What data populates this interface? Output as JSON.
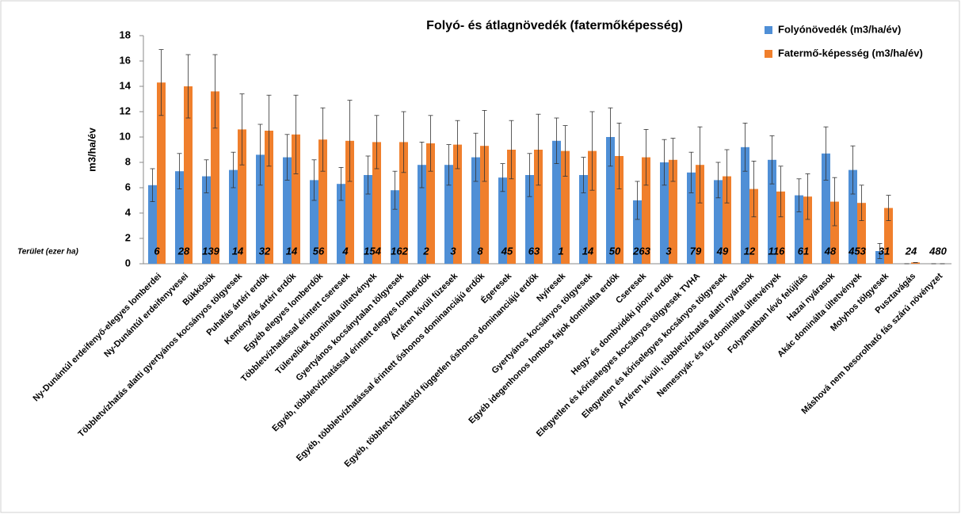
{
  "chart_data": {
    "type": "bar",
    "title": "Folyó- és átlagnövedék (fatermőképesség)",
    "y_label": "m3/ha/év",
    "area_title": "Terület (ezer ha)",
    "categories": [
      "Ny-Dunántúl erdeifenyő-elegyes lomberdei",
      "Ny-Dunántúl erdeifenyvesei",
      "Bükkösök",
      "Többletvízhatás alatti gyertyános kocsányos tölgyesek",
      "Puhafás ártéri erdők",
      "Keményfás ártéri erdők",
      "Egyéb elegyes lomberdők",
      "Többletvízhatással érintett cseresek",
      "Tülevelűek dominálta ültetvények",
      "Gyertyános kocsánytalan tölgyesek",
      "Egyéb, többletvízhatással érintett elegyes lomberdők",
      "Ártéren kívüli füzesek",
      "Egyéb, többletvízhatással érintett őshonos dominanciájú erdők",
      "Égeresek",
      "Egyéb, többletvízhatástól független őshonos dominanciájú erdők",
      "Nyíresek",
      "Gyertyános kocsányos tölgyesek",
      "Egyéb idegenhonos lombos fajok dominálta erdők",
      "Cseresek",
      "Hegy- és dombvidéki pionír erdők",
      "Elegyetlen és kőriselegyes kocsányos tölgyesek TVHA",
      "Elegyetlen és kőriselegyes kocsányos tölgyesek",
      "Ártéren kívüli, többletvízhatás alatti nyárasok",
      "Nemesnyár- és fűz dominálta ültetvények",
      "Folyamatban lévő felújítás",
      "Hazai nyárasok",
      "Akác dominálta ültetvények",
      "Molyhos tölgyesek",
      "Pusztavágás",
      "Máshová nem besorolható fás szárú növényzet"
    ],
    "area_values": [
      6,
      28,
      139,
      14,
      32,
      14,
      56,
      4,
      154,
      162,
      2,
      3,
      8,
      45,
      63,
      1,
      14,
      50,
      263,
      3,
      79,
      49,
      12,
      116,
      61,
      48,
      453,
      31,
      24,
      480
    ],
    "series": [
      {
        "name": "Folyónövedék (m3/ha/év)",
        "color": "#4f8fd6",
        "values": [
          6.2,
          7.3,
          6.9,
          7.4,
          8.6,
          8.4,
          6.6,
          6.3,
          7.0,
          5.8,
          7.8,
          7.8,
          8.4,
          6.8,
          7.0,
          9.7,
          7.0,
          10.0,
          5.0,
          8.0,
          7.2,
          6.6,
          9.2,
          8.2,
          5.4,
          8.7,
          7.4,
          1.0,
          0,
          0
        ],
        "errors": [
          1.3,
          1.4,
          1.3,
          1.4,
          2.4,
          1.8,
          1.6,
          1.3,
          1.5,
          1.5,
          1.8,
          1.6,
          1.9,
          1.1,
          1.7,
          1.8,
          1.4,
          2.3,
          1.5,
          1.8,
          1.6,
          1.4,
          1.9,
          1.9,
          1.3,
          2.1,
          1.9,
          0.6,
          0,
          0
        ]
      },
      {
        "name": "Fatermő-képesség (m3/ha/év)",
        "color": "#f07f2c",
        "values": [
          14.3,
          14.0,
          13.6,
          10.6,
          10.5,
          10.2,
          9.8,
          9.7,
          9.6,
          9.6,
          9.5,
          9.4,
          9.3,
          9.0,
          9.0,
          8.9,
          8.9,
          8.5,
          8.4,
          8.2,
          7.8,
          6.9,
          5.9,
          5.7,
          5.3,
          4.9,
          4.8,
          4.4,
          0.1,
          0
        ],
        "errors": [
          2.6,
          2.5,
          2.9,
          2.8,
          2.8,
          3.1,
          2.5,
          3.2,
          2.1,
          2.4,
          2.2,
          1.9,
          2.8,
          2.3,
          2.8,
          2.0,
          3.1,
          2.6,
          2.2,
          1.7,
          3.0,
          2.1,
          2.2,
          2.0,
          1.8,
          1.9,
          1.4,
          1.0,
          0,
          0
        ]
      }
    ],
    "ylim": [
      0,
      18
    ],
    "yticks": [
      0,
      2,
      4,
      6,
      8,
      10,
      12,
      14,
      16,
      18
    ],
    "grid": false,
    "legend": "top-right"
  }
}
